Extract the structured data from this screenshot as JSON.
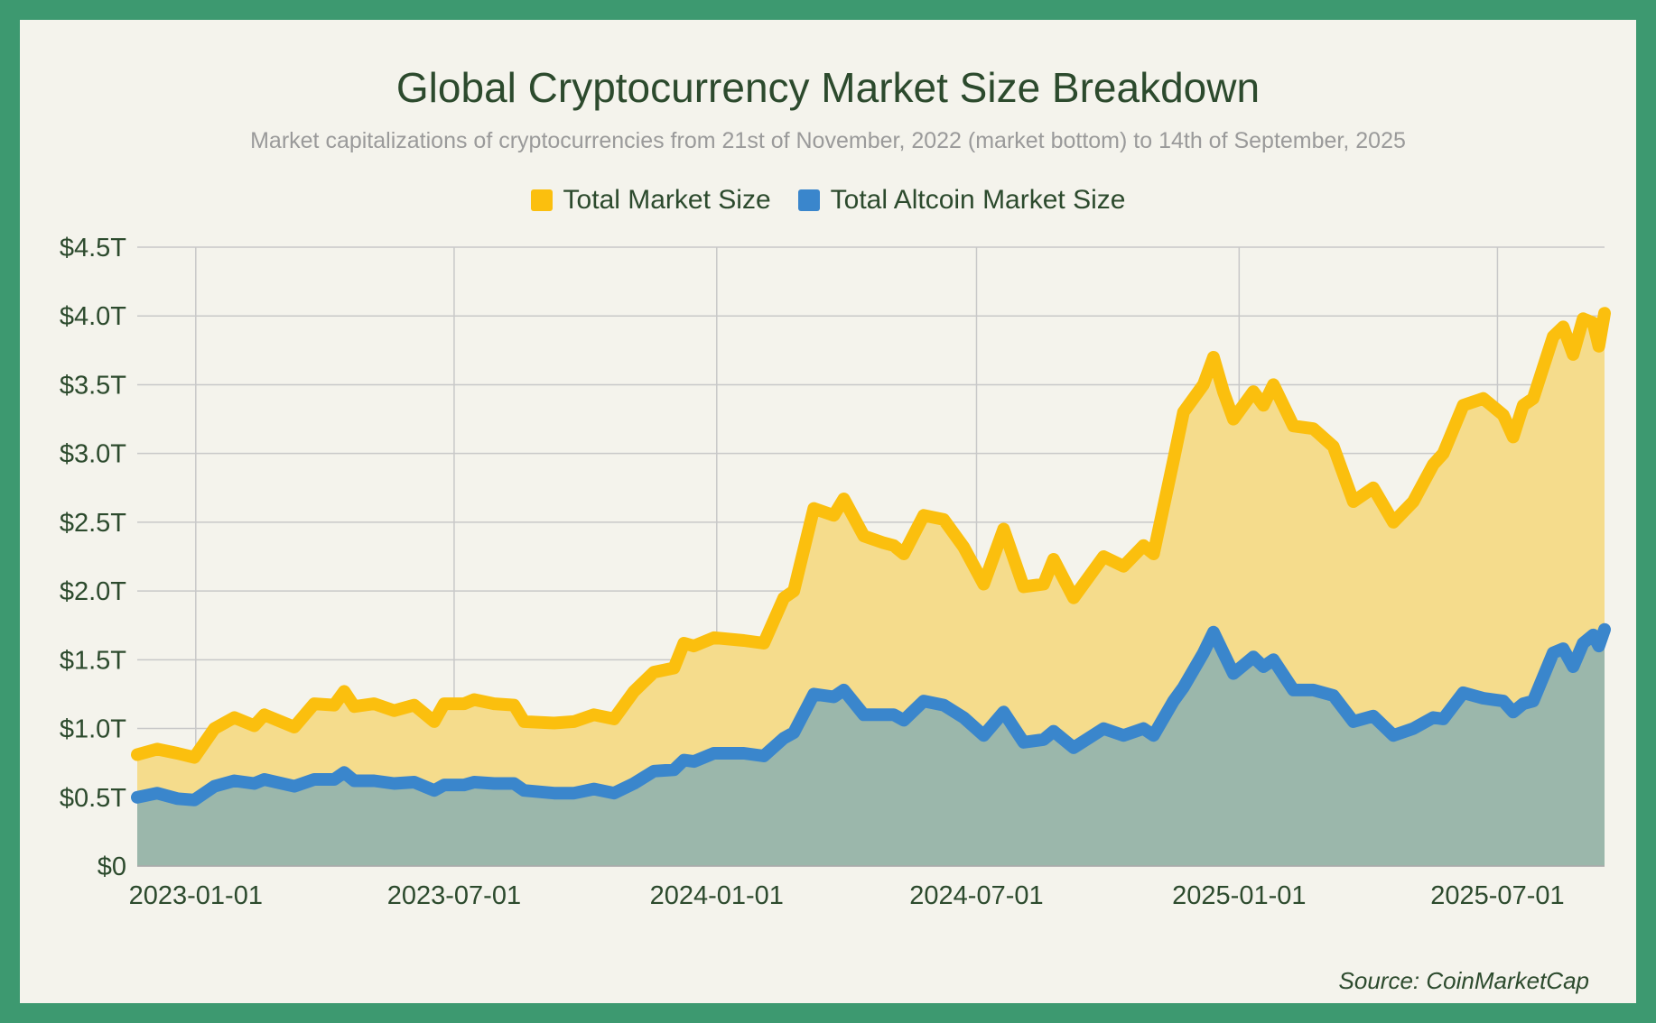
{
  "title": "Global Cryptocurrency Market Size Breakdown",
  "subtitle": "Market capitalizations of cryptocurrencies from 21st of November, 2022 (market bottom) to 14th of September, 2025",
  "source": "Source: CoinMarketCap",
  "colors": {
    "frame": "#3d9970",
    "background": "#f4f3ec",
    "total_line": "#fbbf0e",
    "total_fill": "#f5dc8c",
    "altcoin_line": "#3a86cc",
    "altcoin_fill": "#9bb7ab",
    "grid": "#c8c8c8",
    "text": "#2c4a2d"
  },
  "chart_data": {
    "type": "area",
    "title": "Global Cryptocurrency Market Size Breakdown",
    "subtitle": "Market capitalizations of cryptocurrencies from 21st of November, 2022 (market bottom) to 14th of September, 2025",
    "xlabel": "",
    "ylabel": "",
    "x_range": [
      "2022-11-21",
      "2025-09-14"
    ],
    "ylim": [
      0,
      4.5
    ],
    "y_unit": "trillion USD",
    "y_ticks": [
      {
        "value": 0,
        "label": "$0"
      },
      {
        "value": 0.5,
        "label": "$0.5T"
      },
      {
        "value": 1.0,
        "label": "$1.0T"
      },
      {
        "value": 1.5,
        "label": "$1.5T"
      },
      {
        "value": 2.0,
        "label": "$2.0T"
      },
      {
        "value": 2.5,
        "label": "$2.5T"
      },
      {
        "value": 3.0,
        "label": "$3.0T"
      },
      {
        "value": 3.5,
        "label": "$3.5T"
      },
      {
        "value": 4.0,
        "label": "$4.0T"
      },
      {
        "value": 4.5,
        "label": "$4.5T"
      }
    ],
    "x_ticks": [
      "2023-01-01",
      "2023-07-01",
      "2024-01-01",
      "2024-07-01",
      "2025-01-01",
      "2025-07-01"
    ],
    "grid": true,
    "legend": "top-center",
    "series": [
      {
        "name": "Total Market Size",
        "color": "#fbbf0e",
        "points": [
          [
            "2022-11-21",
            0.81
          ],
          [
            "2022-12-05",
            0.85
          ],
          [
            "2022-12-19",
            0.82
          ],
          [
            "2022-12-31",
            0.79
          ],
          [
            "2023-01-14",
            1.0
          ],
          [
            "2023-01-28",
            1.08
          ],
          [
            "2023-02-11",
            1.02
          ],
          [
            "2023-02-18",
            1.1
          ],
          [
            "2023-03-11",
            1.01
          ],
          [
            "2023-03-25",
            1.18
          ],
          [
            "2023-04-08",
            1.17
          ],
          [
            "2023-04-15",
            1.27
          ],
          [
            "2023-04-22",
            1.16
          ],
          [
            "2023-05-06",
            1.18
          ],
          [
            "2023-05-20",
            1.13
          ],
          [
            "2023-06-03",
            1.17
          ],
          [
            "2023-06-17",
            1.05
          ],
          [
            "2023-06-24",
            1.18
          ],
          [
            "2023-07-08",
            1.18
          ],
          [
            "2023-07-15",
            1.21
          ],
          [
            "2023-07-29",
            1.18
          ],
          [
            "2023-08-12",
            1.17
          ],
          [
            "2023-08-19",
            1.05
          ],
          [
            "2023-09-09",
            1.04
          ],
          [
            "2023-09-23",
            1.05
          ],
          [
            "2023-10-07",
            1.1
          ],
          [
            "2023-10-21",
            1.07
          ],
          [
            "2023-11-04",
            1.27
          ],
          [
            "2023-11-18",
            1.41
          ],
          [
            "2023-12-02",
            1.44
          ],
          [
            "2023-12-09",
            1.62
          ],
          [
            "2023-12-16",
            1.6
          ],
          [
            "2023-12-30",
            1.66
          ],
          [
            "2024-01-20",
            1.64
          ],
          [
            "2024-02-03",
            1.62
          ],
          [
            "2024-02-17",
            1.95
          ],
          [
            "2024-02-24",
            2.0
          ],
          [
            "2024-03-09",
            2.6
          ],
          [
            "2024-03-23",
            2.55
          ],
          [
            "2024-03-30",
            2.67
          ],
          [
            "2024-04-13",
            2.4
          ],
          [
            "2024-04-27",
            2.35
          ],
          [
            "2024-05-04",
            2.33
          ],
          [
            "2024-05-11",
            2.27
          ],
          [
            "2024-05-25",
            2.55
          ],
          [
            "2024-06-08",
            2.52
          ],
          [
            "2024-06-22",
            2.32
          ],
          [
            "2024-07-06",
            2.05
          ],
          [
            "2024-07-20",
            2.45
          ],
          [
            "2024-08-03",
            2.03
          ],
          [
            "2024-08-17",
            2.05
          ],
          [
            "2024-08-24",
            2.23
          ],
          [
            "2024-09-07",
            1.95
          ],
          [
            "2024-09-28",
            2.25
          ],
          [
            "2024-10-12",
            2.18
          ],
          [
            "2024-10-26",
            2.33
          ],
          [
            "2024-11-02",
            2.27
          ],
          [
            "2024-11-16",
            2.95
          ],
          [
            "2024-11-23",
            3.3
          ],
          [
            "2024-12-07",
            3.5
          ],
          [
            "2024-12-14",
            3.7
          ],
          [
            "2024-12-21",
            3.45
          ],
          [
            "2024-12-28",
            3.25
          ],
          [
            "2025-01-11",
            3.45
          ],
          [
            "2025-01-18",
            3.35
          ],
          [
            "2025-01-25",
            3.5
          ],
          [
            "2025-02-08",
            3.2
          ],
          [
            "2025-02-22",
            3.18
          ],
          [
            "2025-03-08",
            3.05
          ],
          [
            "2025-03-22",
            2.65
          ],
          [
            "2025-04-05",
            2.75
          ],
          [
            "2025-04-19",
            2.5
          ],
          [
            "2025-05-03",
            2.65
          ],
          [
            "2025-05-17",
            2.92
          ],
          [
            "2025-05-24",
            3.0
          ],
          [
            "2025-06-07",
            3.35
          ],
          [
            "2025-06-21",
            3.4
          ],
          [
            "2025-07-05",
            3.28
          ],
          [
            "2025-07-12",
            3.12
          ],
          [
            "2025-07-19",
            3.35
          ],
          [
            "2025-07-26",
            3.4
          ],
          [
            "2025-08-09",
            3.85
          ],
          [
            "2025-08-16",
            3.92
          ],
          [
            "2025-08-23",
            3.72
          ],
          [
            "2025-08-30",
            3.98
          ],
          [
            "2025-09-06",
            3.95
          ],
          [
            "2025-09-10",
            3.78
          ],
          [
            "2025-09-14",
            4.02
          ]
        ]
      },
      {
        "name": "Total Altcoin Market Size",
        "color": "#3a86cc",
        "points": [
          [
            "2022-11-21",
            0.5
          ],
          [
            "2022-12-05",
            0.53
          ],
          [
            "2022-12-19",
            0.49
          ],
          [
            "2022-12-31",
            0.48
          ],
          [
            "2023-01-14",
            0.58
          ],
          [
            "2023-01-28",
            0.62
          ],
          [
            "2023-02-11",
            0.6
          ],
          [
            "2023-02-18",
            0.63
          ],
          [
            "2023-03-11",
            0.58
          ],
          [
            "2023-03-25",
            0.63
          ],
          [
            "2023-04-08",
            0.63
          ],
          [
            "2023-04-15",
            0.68
          ],
          [
            "2023-04-22",
            0.62
          ],
          [
            "2023-05-06",
            0.62
          ],
          [
            "2023-05-20",
            0.6
          ],
          [
            "2023-06-03",
            0.61
          ],
          [
            "2023-06-17",
            0.55
          ],
          [
            "2023-06-24",
            0.59
          ],
          [
            "2023-07-08",
            0.59
          ],
          [
            "2023-07-15",
            0.61
          ],
          [
            "2023-07-29",
            0.6
          ],
          [
            "2023-08-12",
            0.6
          ],
          [
            "2023-08-19",
            0.55
          ],
          [
            "2023-09-09",
            0.53
          ],
          [
            "2023-09-23",
            0.53
          ],
          [
            "2023-10-07",
            0.56
          ],
          [
            "2023-10-21",
            0.53
          ],
          [
            "2023-11-04",
            0.6
          ],
          [
            "2023-11-18",
            0.69
          ],
          [
            "2023-12-02",
            0.7
          ],
          [
            "2023-12-09",
            0.77
          ],
          [
            "2023-12-16",
            0.76
          ],
          [
            "2023-12-30",
            0.82
          ],
          [
            "2024-01-20",
            0.82
          ],
          [
            "2024-02-03",
            0.8
          ],
          [
            "2024-02-17",
            0.93
          ],
          [
            "2024-02-24",
            0.97
          ],
          [
            "2024-03-09",
            1.25
          ],
          [
            "2024-03-23",
            1.23
          ],
          [
            "2024-03-30",
            1.28
          ],
          [
            "2024-04-13",
            1.1
          ],
          [
            "2024-04-27",
            1.1
          ],
          [
            "2024-05-04",
            1.1
          ],
          [
            "2024-05-11",
            1.06
          ],
          [
            "2024-05-25",
            1.2
          ],
          [
            "2024-06-08",
            1.17
          ],
          [
            "2024-06-22",
            1.08
          ],
          [
            "2024-07-06",
            0.95
          ],
          [
            "2024-07-20",
            1.12
          ],
          [
            "2024-08-03",
            0.9
          ],
          [
            "2024-08-17",
            0.92
          ],
          [
            "2024-08-24",
            0.98
          ],
          [
            "2024-09-07",
            0.86
          ],
          [
            "2024-09-28",
            1.0
          ],
          [
            "2024-10-12",
            0.95
          ],
          [
            "2024-10-26",
            1.0
          ],
          [
            "2024-11-02",
            0.95
          ],
          [
            "2024-11-16",
            1.2
          ],
          [
            "2024-11-23",
            1.3
          ],
          [
            "2024-12-07",
            1.55
          ],
          [
            "2024-12-14",
            1.7
          ],
          [
            "2024-12-21",
            1.55
          ],
          [
            "2024-12-28",
            1.4
          ],
          [
            "2025-01-11",
            1.52
          ],
          [
            "2025-01-18",
            1.45
          ],
          [
            "2025-01-25",
            1.5
          ],
          [
            "2025-02-08",
            1.28
          ],
          [
            "2025-02-22",
            1.28
          ],
          [
            "2025-03-08",
            1.24
          ],
          [
            "2025-03-22",
            1.05
          ],
          [
            "2025-04-05",
            1.09
          ],
          [
            "2025-04-19",
            0.95
          ],
          [
            "2025-05-03",
            1.0
          ],
          [
            "2025-05-17",
            1.08
          ],
          [
            "2025-05-24",
            1.07
          ],
          [
            "2025-06-07",
            1.26
          ],
          [
            "2025-06-21",
            1.22
          ],
          [
            "2025-07-05",
            1.2
          ],
          [
            "2025-07-12",
            1.12
          ],
          [
            "2025-07-19",
            1.18
          ],
          [
            "2025-07-26",
            1.2
          ],
          [
            "2025-08-09",
            1.55
          ],
          [
            "2025-08-16",
            1.58
          ],
          [
            "2025-08-23",
            1.45
          ],
          [
            "2025-08-30",
            1.62
          ],
          [
            "2025-09-06",
            1.68
          ],
          [
            "2025-09-10",
            1.6
          ],
          [
            "2025-09-14",
            1.72
          ]
        ]
      }
    ]
  }
}
